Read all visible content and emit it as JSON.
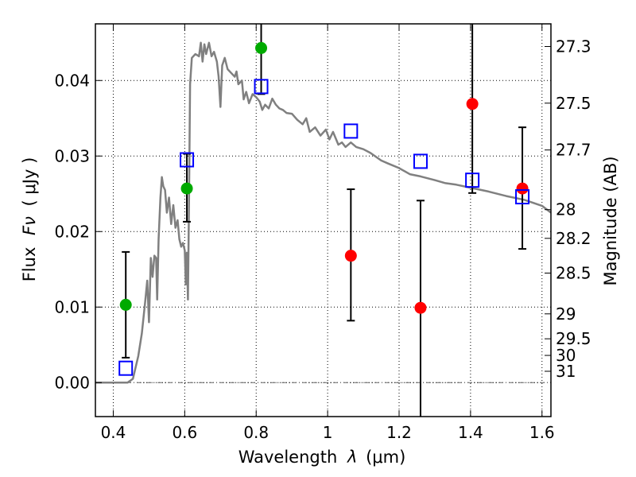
{
  "chart_data": {
    "type": "scatter",
    "title": "",
    "xlabel_text": "Wavelength",
    "xlabel_symbol": "λ",
    "xlabel_unit": "(μm)",
    "ylabel_text": "Flux",
    "ylabel_symbol": "Fν",
    "ylabel_unit": "( μJy )",
    "y2label": "Magnitude (AB)",
    "xlim": [
      0.35,
      1.625
    ],
    "ylim": [
      -0.0045,
      0.0475
    ],
    "grid": true,
    "x_ticks": [
      0.4,
      0.6,
      0.8,
      1.0,
      1.2,
      1.4,
      1.6
    ],
    "x_tick_labels": [
      "0.4",
      "0.6",
      "0.8",
      "1",
      "1.2",
      "1.4",
      "1.6"
    ],
    "y_ticks": [
      0.0,
      0.01,
      0.02,
      0.03,
      0.04
    ],
    "y_tick_labels": [
      "0.00",
      "0.01",
      "0.02",
      "0.03",
      "0.04"
    ],
    "mag_ticks": [
      {
        "label": "27.3",
        "flux": 0.0445
      },
      {
        "label": "27.5",
        "flux": 0.037
      },
      {
        "label": "27.7",
        "flux": 0.0308
      },
      {
        "label": "28",
        "flux": 0.0229
      },
      {
        "label": "28.2",
        "flux": 0.0191
      },
      {
        "label": "28.5",
        "flux": 0.0145
      },
      {
        "label": "29",
        "flux": 0.0091
      },
      {
        "label": "29.5",
        "flux": 0.0058
      },
      {
        "label": "30",
        "flux": 0.0036
      },
      {
        "label": "31",
        "flux": 0.0015
      }
    ],
    "colors": {
      "model": "#808080",
      "detections": "#00aa00",
      "nondetections": "#ff0000",
      "model_photometry": "#0000ff",
      "errorbars": "#000000"
    },
    "series": [
      {
        "name": "model spectrum",
        "type": "line",
        "points": [
          [
            0.35,
            0.0
          ],
          [
            0.44,
            0.0
          ],
          [
            0.455,
            0.0005
          ],
          [
            0.47,
            0.0035
          ],
          [
            0.48,
            0.0065
          ],
          [
            0.49,
            0.011
          ],
          [
            0.495,
            0.0135
          ],
          [
            0.5,
            0.008
          ],
          [
            0.505,
            0.0165
          ],
          [
            0.51,
            0.014
          ],
          [
            0.515,
            0.0168
          ],
          [
            0.52,
            0.0165
          ],
          [
            0.523,
            0.011
          ],
          [
            0.527,
            0.019
          ],
          [
            0.532,
            0.0245
          ],
          [
            0.536,
            0.0272
          ],
          [
            0.54,
            0.026
          ],
          [
            0.545,
            0.0255
          ],
          [
            0.55,
            0.0225
          ],
          [
            0.556,
            0.0245
          ],
          [
            0.562,
            0.021
          ],
          [
            0.568,
            0.0235
          ],
          [
            0.574,
            0.0205
          ],
          [
            0.58,
            0.0215
          ],
          [
            0.585,
            0.019
          ],
          [
            0.59,
            0.018
          ],
          [
            0.595,
            0.0185
          ],
          [
            0.6,
            0.0175
          ],
          [
            0.603,
            0.013
          ],
          [
            0.606,
            0.0172
          ],
          [
            0.609,
            0.011
          ],
          [
            0.612,
            0.0235
          ],
          [
            0.615,
            0.0395
          ],
          [
            0.62,
            0.043
          ],
          [
            0.63,
            0.0435
          ],
          [
            0.64,
            0.0432
          ],
          [
            0.645,
            0.045
          ],
          [
            0.65,
            0.0425
          ],
          [
            0.655,
            0.0448
          ],
          [
            0.66,
            0.0435
          ],
          [
            0.668,
            0.045
          ],
          [
            0.675,
            0.0432
          ],
          [
            0.682,
            0.0438
          ],
          [
            0.69,
            0.0425
          ],
          [
            0.695,
            0.0405
          ],
          [
            0.7,
            0.0365
          ],
          [
            0.705,
            0.042
          ],
          [
            0.712,
            0.043
          ],
          [
            0.72,
            0.0415
          ],
          [
            0.73,
            0.041
          ],
          [
            0.74,
            0.0405
          ],
          [
            0.745,
            0.0412
          ],
          [
            0.75,
            0.0395
          ],
          [
            0.76,
            0.04
          ],
          [
            0.765,
            0.0375
          ],
          [
            0.772,
            0.0385
          ],
          [
            0.78,
            0.037
          ],
          [
            0.79,
            0.0382
          ],
          [
            0.8,
            0.0378
          ],
          [
            0.81,
            0.0372
          ],
          [
            0.817,
            0.0361
          ],
          [
            0.825,
            0.0368
          ],
          [
            0.835,
            0.0363
          ],
          [
            0.845,
            0.0376
          ],
          [
            0.855,
            0.0368
          ],
          [
            0.865,
            0.0363
          ],
          [
            0.875,
            0.0361
          ],
          [
            0.885,
            0.0357
          ],
          [
            0.9,
            0.0356
          ],
          [
            0.915,
            0.0348
          ],
          [
            0.93,
            0.0342
          ],
          [
            0.94,
            0.035
          ],
          [
            0.95,
            0.0332
          ],
          [
            0.965,
            0.0338
          ],
          [
            0.98,
            0.0327
          ],
          [
            0.995,
            0.0335
          ],
          [
            1.005,
            0.0322
          ],
          [
            1.015,
            0.0332
          ],
          [
            1.03,
            0.0315
          ],
          [
            1.04,
            0.0318
          ],
          [
            1.05,
            0.0312
          ],
          [
            1.065,
            0.0318
          ],
          [
            1.08,
            0.0312
          ],
          [
            1.1,
            0.0309
          ],
          [
            1.12,
            0.0304
          ],
          [
            1.15,
            0.0294
          ],
          [
            1.17,
            0.029
          ],
          [
            1.2,
            0.0284
          ],
          [
            1.23,
            0.0276
          ],
          [
            1.26,
            0.0273
          ],
          [
            1.3,
            0.0268
          ],
          [
            1.33,
            0.0264
          ],
          [
            1.36,
            0.0262
          ],
          [
            1.4,
            0.0258
          ],
          [
            1.45,
            0.0253
          ],
          [
            1.5,
            0.0247
          ],
          [
            1.55,
            0.0242
          ],
          [
            1.6,
            0.0234
          ],
          [
            1.625,
            0.0225
          ]
        ]
      },
      {
        "name": "detections",
        "type": "scatter",
        "points": [
          {
            "x": 0.435,
            "y": 0.0103,
            "yerr_low": 0.0033,
            "yerr_high": 0.0173
          },
          {
            "x": 0.606,
            "y": 0.0257,
            "yerr_low": 0.0213,
            "yerr_high": 0.0303
          },
          {
            "x": 0.814,
            "y": 0.0443,
            "yerr_low": 0.0382,
            "yerr_high": 0.0475
          }
        ]
      },
      {
        "name": "non-detections",
        "type": "scatter",
        "points": [
          {
            "x": 1.065,
            "y": 0.0168,
            "yerr_low": 0.0082,
            "yerr_high": 0.0256
          },
          {
            "x": 1.26,
            "y": 0.0099,
            "yerr_low": -0.0045,
            "yerr_high": 0.0241
          },
          {
            "x": 1.405,
            "y": 0.0369,
            "yerr_low": 0.0251,
            "yerr_high": 0.0475
          },
          {
            "x": 1.545,
            "y": 0.0257,
            "yerr_low": 0.0177,
            "yerr_high": 0.0338
          }
        ]
      },
      {
        "name": "model photometry",
        "type": "scatter",
        "points": [
          {
            "x": 0.435,
            "y": 0.0019
          },
          {
            "x": 0.606,
            "y": 0.0295
          },
          {
            "x": 0.814,
            "y": 0.0392
          },
          {
            "x": 1.065,
            "y": 0.0333
          },
          {
            "x": 1.26,
            "y": 0.0293
          },
          {
            "x": 1.405,
            "y": 0.0268
          },
          {
            "x": 1.545,
            "y": 0.0246
          }
        ]
      }
    ]
  }
}
